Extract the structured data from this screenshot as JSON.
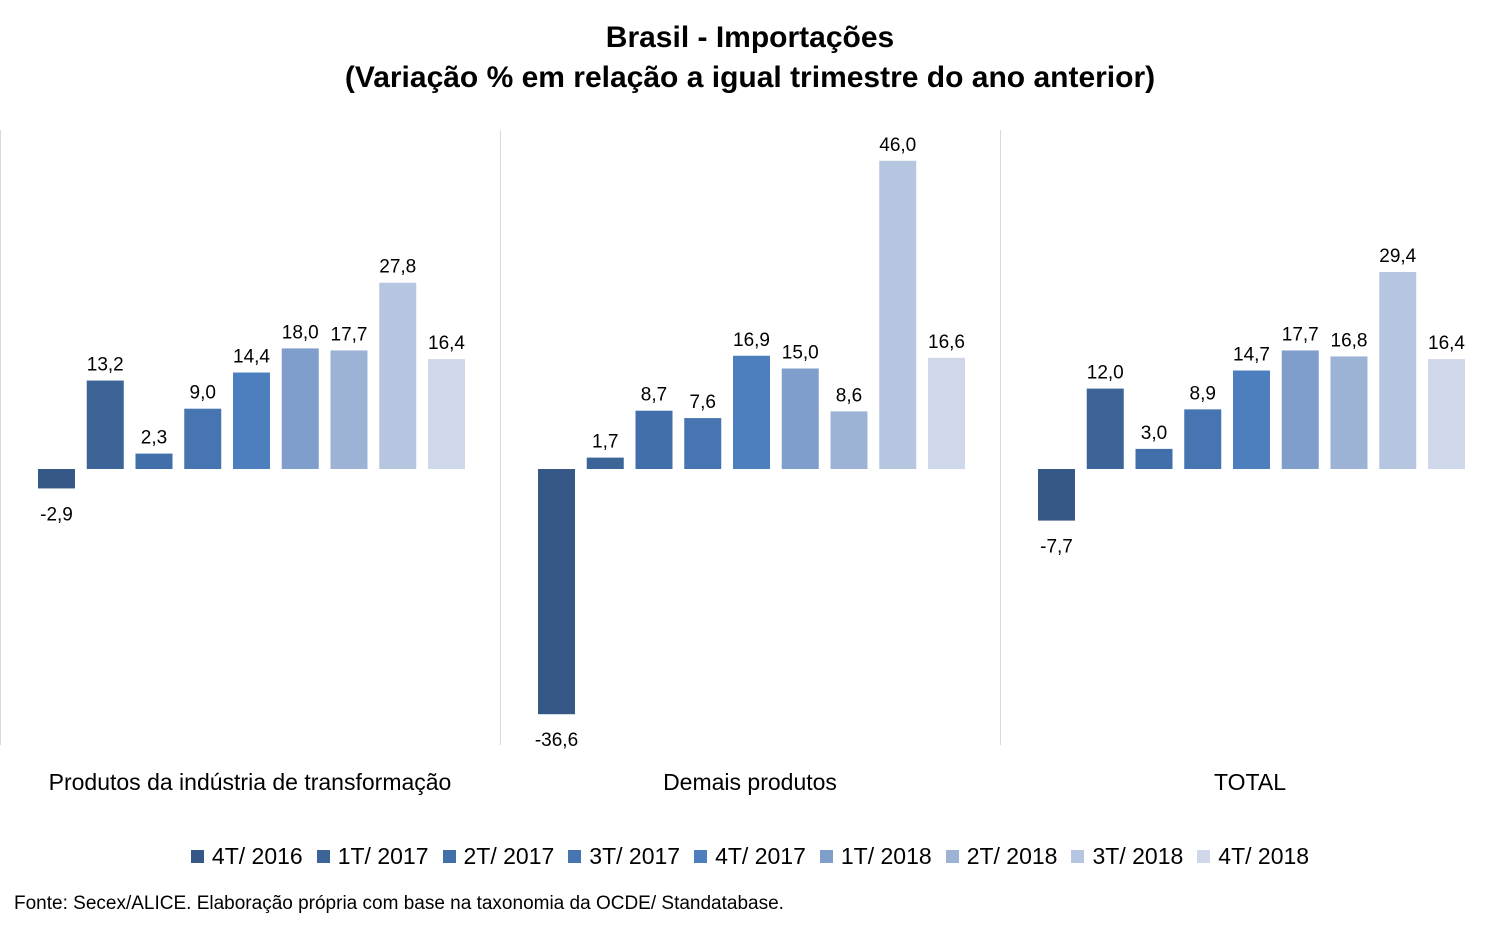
{
  "chart_data": {
    "type": "bar",
    "title": "Brasil - Importações",
    "subtitle": "(Variação % em relação a igual trimestre do ano anterior)",
    "categories": [
      "Produtos da indústria de transformação",
      "Demais produtos",
      "TOTAL"
    ],
    "series": [
      {
        "name": "4T/ 2016",
        "color": "#355886",
        "values": [
          -2.9,
          -36.6,
          -7.7
        ],
        "labels": [
          "-2,9",
          "-36,6",
          "-7,7"
        ]
      },
      {
        "name": "1T/ 2017",
        "color": "#3c6496",
        "values": [
          13.2,
          1.7,
          12.0
        ],
        "labels": [
          "13,2",
          "1,7",
          "12,0"
        ]
      },
      {
        "name": "2T/ 2017",
        "color": "#416fa9",
        "values": [
          2.3,
          8.7,
          3.0
        ],
        "labels": [
          "2,3",
          "8,7",
          "3,0"
        ]
      },
      {
        "name": "3T/ 2017",
        "color": "#4675b2",
        "values": [
          9.0,
          7.6,
          8.9
        ],
        "labels": [
          "9,0",
          "7,6",
          "8,9"
        ]
      },
      {
        "name": "4T/ 2017",
        "color": "#4d7fbf",
        "values": [
          14.4,
          16.9,
          14.7
        ],
        "labels": [
          "14,4",
          "16,9",
          "14,7"
        ]
      },
      {
        "name": "1T/ 2018",
        "color": "#7f9ecb",
        "values": [
          18.0,
          15.0,
          17.7
        ],
        "labels": [
          "18,0",
          "15,0",
          "17,7"
        ]
      },
      {
        "name": "2T/ 2018",
        "color": "#9db3d6",
        "values": [
          17.7,
          8.6,
          16.8
        ],
        "labels": [
          "17,7",
          "8,6",
          "16,8"
        ]
      },
      {
        "name": "3T/ 2018",
        "color": "#b6c5e0",
        "values": [
          27.8,
          46.0,
          29.4
        ],
        "labels": [
          "27,8",
          "46,0",
          "29,4"
        ]
      },
      {
        "name": "4T/ 2018",
        "color": "#ced8ea",
        "values": [
          16.4,
          16.6,
          16.4
        ],
        "labels": [
          "16,4",
          "16,6",
          "16,4"
        ]
      }
    ],
    "ylim": [
      -40,
      50
    ],
    "grid": false,
    "legend": "bottom",
    "source": "Fonte: Secex/ALICE. Elaboração própria com base na taxonomia da OCDE/ Standatabase."
  }
}
